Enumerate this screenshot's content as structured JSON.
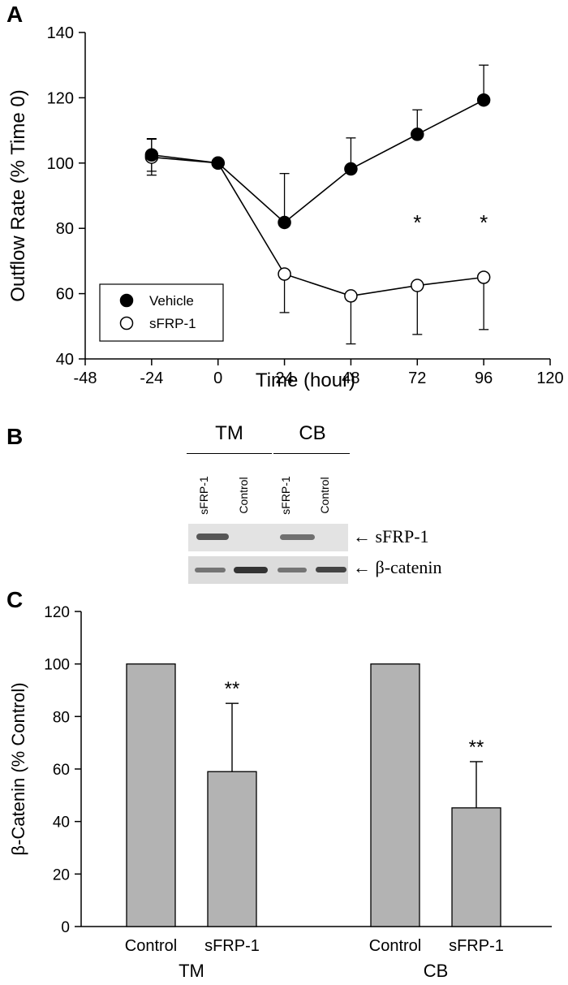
{
  "panels": {
    "a": "A",
    "b": "B",
    "c": "C"
  },
  "chart_data": [
    {
      "type": "line",
      "xlabel": "Time (hour)",
      "ylabel": "Outflow Rate (% Time 0)",
      "xlim": [
        -48,
        120
      ],
      "ylim": [
        40,
        140
      ],
      "xticks": [
        -48,
        -24,
        0,
        24,
        48,
        72,
        96,
        120
      ],
      "yticks": [
        40,
        60,
        80,
        100,
        120,
        140
      ],
      "x": [
        -24,
        0,
        24,
        48,
        72,
        96
      ],
      "legend_position": "bottom-left",
      "series": [
        {
          "name": "Vehicle",
          "marker": "filled-circle",
          "values": [
            102.5,
            100,
            81.8,
            98.2,
            108.8,
            119.3
          ],
          "errors": [
            5,
            0,
            15,
            9.5,
            7.5,
            10.7
          ]
        },
        {
          "name": "sFRP-1",
          "marker": "open-circle",
          "values": [
            101.8,
            100,
            66,
            59.3,
            62.5,
            65
          ],
          "errors": [
            5.5,
            0,
            11.8,
            14.7,
            15,
            16
          ]
        }
      ],
      "annotations": [
        {
          "x": 72,
          "y": 83,
          "text": "*"
        },
        {
          "x": 96,
          "y": 83,
          "text": "*"
        }
      ]
    },
    {
      "type": "bar",
      "ylabel": "β-Catenin (% Control)",
      "ylim": [
        0,
        120
      ],
      "yticks": [
        0,
        20,
        40,
        60,
        80,
        100,
        120
      ],
      "groups": [
        {
          "name": "TM",
          "categories": [
            "Control",
            "sFRP-1"
          ],
          "values": [
            100,
            59
          ],
          "errors": [
            0,
            26
          ],
          "annotations": [
            "",
            "**"
          ]
        },
        {
          "name": "CB",
          "categories": [
            "Control",
            "sFRP-1"
          ],
          "values": [
            100,
            45.2
          ],
          "errors": [
            0,
            17.6
          ],
          "annotations": [
            "",
            "**"
          ]
        }
      ],
      "bar_color": "#b3b3b3"
    }
  ],
  "blot": {
    "group_labels": [
      "TM",
      "CB"
    ],
    "lane_labels": [
      "sFRP-1",
      "Control",
      "sFRP-1",
      "Control"
    ],
    "row_labels": [
      "← sFRP-1",
      "← β-catenin"
    ]
  }
}
